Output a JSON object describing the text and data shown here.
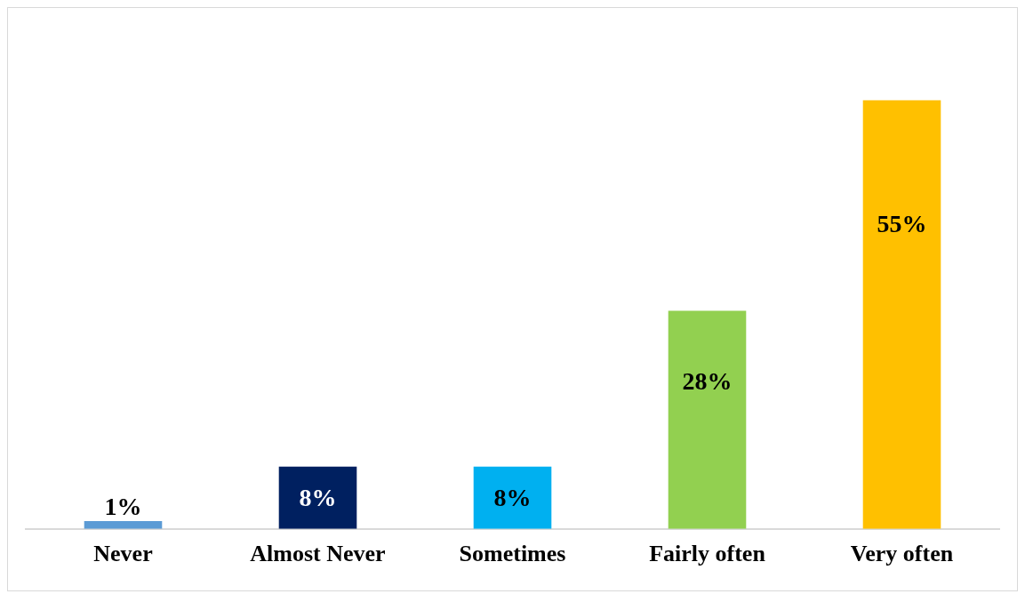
{
  "chart_data": {
    "type": "bar",
    "categories": [
      "Never",
      "Almost Never",
      "Sometimes",
      "Fairly often",
      "Very often"
    ],
    "values": [
      1,
      8,
      8,
      28,
      55
    ],
    "colors": [
      "#5b9bd5",
      "#002060",
      "#00b0f0",
      "#92d050",
      "#ffc000"
    ],
    "value_labels": [
      "1%",
      "8%",
      "8%",
      "28%",
      "55%"
    ],
    "grid": false,
    "legend": false
  }
}
